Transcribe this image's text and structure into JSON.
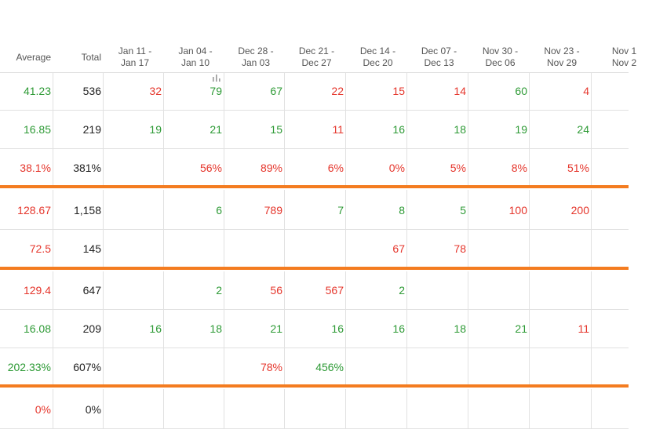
{
  "columns": [
    {
      "id": "average",
      "label": "Average"
    },
    {
      "id": "total",
      "label": "Total"
    },
    {
      "id": "w1",
      "line1": "Jan 11 -",
      "line2": "Jan 17"
    },
    {
      "id": "w2",
      "line1": "Jan 04 -",
      "line2": "Jan 10"
    },
    {
      "id": "w3",
      "line1": "Dec 28 -",
      "line2": "Jan 03"
    },
    {
      "id": "w4",
      "line1": "Dec 21 -",
      "line2": "Dec 27"
    },
    {
      "id": "w5",
      "line1": "Dec 14 -",
      "line2": "Dec 20"
    },
    {
      "id": "w6",
      "line1": "Dec 07 -",
      "line2": "Dec 13"
    },
    {
      "id": "w7",
      "line1": "Nov 30 -",
      "line2": "Dec 06"
    },
    {
      "id": "w8",
      "line1": "Nov 23 -",
      "line2": "Nov 29"
    },
    {
      "id": "w9",
      "line1": "Nov 1",
      "line2": "Nov 2"
    }
  ],
  "rows": [
    {
      "average": "41.23",
      "avg_color": "green",
      "total": "536",
      "cells": [
        [
          "32",
          "red"
        ],
        [
          "79",
          "green"
        ],
        [
          "67",
          "green"
        ],
        [
          "22",
          "red"
        ],
        [
          "15",
          "red"
        ],
        [
          "14",
          "red"
        ],
        [
          "60",
          "green"
        ],
        [
          "4",
          "red"
        ]
      ]
    },
    {
      "average": "16.85",
      "avg_color": "green",
      "total": "219",
      "cells": [
        [
          "19",
          "green"
        ],
        [
          "21",
          "green"
        ],
        [
          "15",
          "green"
        ],
        [
          "11",
          "red"
        ],
        [
          "16",
          "green"
        ],
        [
          "18",
          "green"
        ],
        [
          "19",
          "green"
        ],
        [
          "24",
          "green"
        ]
      ]
    },
    {
      "average": "38.1%",
      "avg_color": "red",
      "total": "381%",
      "cells": [
        [
          "",
          ""
        ],
        [
          "56%",
          "red"
        ],
        [
          "89%",
          "red"
        ],
        [
          "6%",
          "red"
        ],
        [
          "0%",
          "red"
        ],
        [
          "5%",
          "red"
        ],
        [
          "8%",
          "red"
        ],
        [
          "51%",
          "red"
        ]
      ]
    },
    {
      "average": "128.67",
      "avg_color": "red",
      "total": "1,158",
      "cells": [
        [
          "",
          ""
        ],
        [
          "6",
          "green"
        ],
        [
          "789",
          "red"
        ],
        [
          "7",
          "green"
        ],
        [
          "8",
          "green"
        ],
        [
          "5",
          "green"
        ],
        [
          "100",
          "red"
        ],
        [
          "200",
          "red"
        ]
      ]
    },
    {
      "average": "72.5",
      "avg_color": "red",
      "total": "145",
      "cells": [
        [
          "",
          ""
        ],
        [
          "",
          ""
        ],
        [
          "",
          ""
        ],
        [
          "",
          ""
        ],
        [
          "67",
          "red"
        ],
        [
          "78",
          "red"
        ],
        [
          "",
          ""
        ],
        [
          "",
          ""
        ]
      ]
    },
    {
      "average": "129.4",
      "avg_color": "red",
      "total": "647",
      "cells": [
        [
          "",
          ""
        ],
        [
          "2",
          "green"
        ],
        [
          "56",
          "red"
        ],
        [
          "567",
          "red"
        ],
        [
          "2",
          "green"
        ],
        [
          "",
          ""
        ],
        [
          "",
          ""
        ],
        [
          "",
          ""
        ]
      ]
    },
    {
      "average": "16.08",
      "avg_color": "green",
      "total": "209",
      "cells": [
        [
          "16",
          "green"
        ],
        [
          "18",
          "green"
        ],
        [
          "21",
          "green"
        ],
        [
          "16",
          "green"
        ],
        [
          "16",
          "green"
        ],
        [
          "18",
          "green"
        ],
        [
          "21",
          "green"
        ],
        [
          "11",
          "red"
        ]
      ]
    },
    {
      "average": "202.33%",
      "avg_color": "green",
      "total": "607%",
      "cells": [
        [
          "",
          ""
        ],
        [
          "",
          ""
        ],
        [
          "78%",
          "red"
        ],
        [
          "456%",
          "green"
        ],
        [
          "",
          ""
        ],
        [
          "",
          ""
        ],
        [
          "",
          ""
        ],
        [
          "",
          ""
        ]
      ]
    },
    {
      "average": "0%",
      "avg_color": "red",
      "total": "0%",
      "cells": [
        [
          "",
          ""
        ],
        [
          "",
          ""
        ],
        [
          "",
          ""
        ],
        [
          "",
          ""
        ],
        [
          "",
          ""
        ],
        [
          "",
          ""
        ],
        [
          "",
          ""
        ],
        [
          "",
          ""
        ]
      ]
    }
  ],
  "chart_icon": "bar-chart-icon"
}
